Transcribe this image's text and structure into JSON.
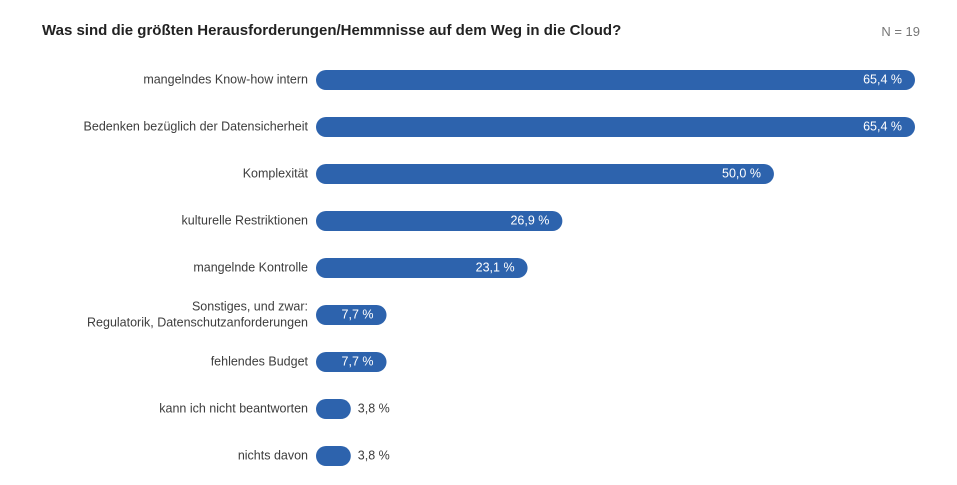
{
  "header": {
    "title": "Was sind die größten Herausforderungen/Hemmnisse auf dem Weg in die Cloud?",
    "n_label": "N = 19"
  },
  "colors": {
    "bar": "#2d63ad",
    "text": "#3d3d3d"
  },
  "chart_data": {
    "type": "bar",
    "orientation": "horizontal",
    "title": "Was sind die größten Herausforderungen/Hemmnisse auf dem Weg in die Cloud?",
    "categories": [
      [
        "mangelndes Know-how intern"
      ],
      [
        "Bedenken bezüglich der Datensicherheit"
      ],
      [
        "Komplexität"
      ],
      [
        "kulturelle Restriktionen"
      ],
      [
        "mangelnde Kontrolle"
      ],
      [
        "Sonstiges, und zwar:",
        "Regulatorik, Datenschutzanforderungen"
      ],
      [
        "fehlendes Budget"
      ],
      [
        "kann ich nicht beantworten"
      ],
      [
        "nichts davon"
      ]
    ],
    "values": [
      65.4,
      65.4,
      50.0,
      26.9,
      23.1,
      7.7,
      7.7,
      3.8,
      3.8
    ],
    "value_labels": [
      "65,4 %",
      "65,4 %",
      "50,0 %",
      "26,9 %",
      "23,1 %",
      "7,7 %",
      "7,7 %",
      "3,8 %",
      "3,8 %"
    ],
    "unit": "%",
    "xlim": [
      0,
      65.4
    ],
    "grid": false,
    "legend": "none"
  }
}
